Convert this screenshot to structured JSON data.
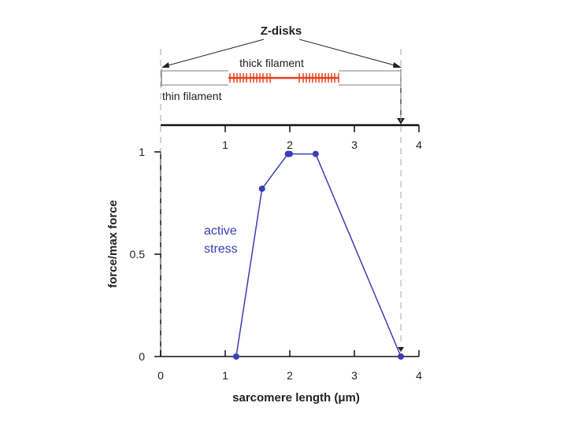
{
  "diagram": {
    "z_disks_label": "Z-disks",
    "thick_filament_label": "thick filament",
    "thin_filament_label": "thin filament",
    "top_axis_ticks": [
      "1",
      "2",
      "3",
      "4"
    ],
    "colors": {
      "thick": "#e8401c",
      "thin": "#888888",
      "axis": "#111111"
    }
  },
  "chart_data": {
    "type": "line",
    "xlabel": "sarcomere length (μm)",
    "ylabel": "force/max force",
    "xlim": [
      0,
      4
    ],
    "ylim": [
      0,
      1
    ],
    "x_ticks": [
      "0",
      "1",
      "2",
      "3",
      "4"
    ],
    "y_ticks": [
      "0",
      "0.5",
      "1"
    ],
    "grid": false,
    "annotation": "active\nstress",
    "series": [
      {
        "name": "active stress",
        "color": "#3a3db5",
        "x": [
          1.17,
          1.57,
          1.97,
          2.0,
          2.4,
          3.72
        ],
        "y": [
          0.0,
          0.82,
          0.99,
          0.99,
          0.99,
          0.0
        ]
      }
    ],
    "reference_lines": [
      {
        "x": 0.0,
        "style": "dashed"
      },
      {
        "x": 3.72,
        "style": "dashed"
      }
    ]
  }
}
